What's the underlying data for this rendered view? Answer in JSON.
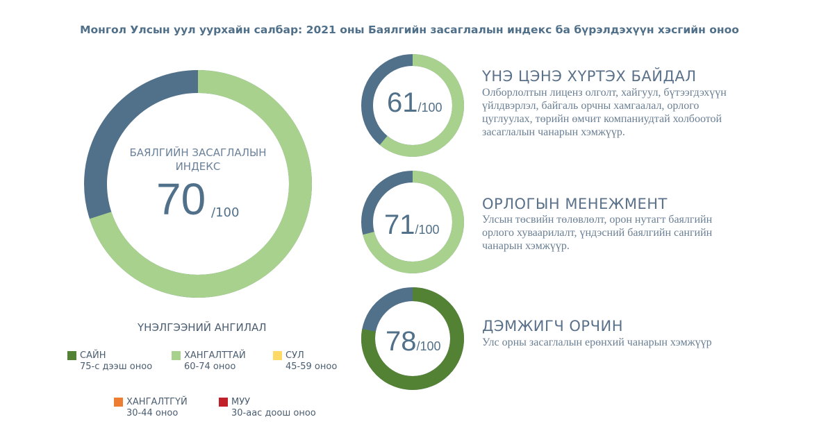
{
  "title": "Монгол Улсын уул уурхайн салбар: 2021 оны Баялгийн засаглалын индекс ба бүрэлдэхүүн хэсгийн оноо",
  "colors": {
    "remainder": "#51708a",
    "good": "#548235",
    "satisfactory": "#a9d18e",
    "weak": "#ffd966",
    "poor": "#ed7d31",
    "failing": "#c0202a"
  },
  "chart_data": {
    "type": "donut",
    "max": 100,
    "main": {
      "label": "БАЯЛГИЙН ЗАСАГЛАЛЫН ИНДЕКС",
      "value": 70,
      "denominator": "/100",
      "color": "#a9d18e"
    },
    "components": [
      {
        "label": "ҮНЭ ЦЭНЭ ХҮРТЭХ БАЙДАЛ",
        "value": 61,
        "denominator": "/100",
        "color": "#a9d18e",
        "description": "Олборлолтын лиценз олголт, хайгуул, бүтээгдэхүүн үйлдвэрлэл, байгаль орчны хамгаалал, орлого цуглуулах, төрийн өмчит компаниудтай холбоотой засаглалын чанарын хэмжүүр."
      },
      {
        "label": "ОРЛОГЫН МЕНЕЖМЕНТ",
        "value": 71,
        "denominator": "/100",
        "color": "#a9d18e",
        "description": "Улсын төсвийн төлөвлөлт, орон нутагт баялгийн орлого хуваарилалт, үндэсний баялгийн сангийн чанарын хэмжүүр."
      },
      {
        "label": "ДЭМЖИГЧ ОРЧИН",
        "value": 78,
        "denominator": "/100",
        "color": "#548235",
        "description": "Улс орны засаглалын ерөнхий чанарын хэмжүүр"
      }
    ],
    "legend": {
      "title": "ҮНЭЛГЭЭНИЙ АНГИЛАЛ",
      "items": [
        {
          "name": "САЙН",
          "range": "75-с дээш оноо",
          "color": "#548235"
        },
        {
          "name": "ХАНГАЛТТАЙ",
          "range": "60-74 оноо",
          "color": "#a9d18e"
        },
        {
          "name": "СУЛ",
          "range": "45-59 оноо",
          "color": "#ffd966"
        },
        {
          "name": "ХАНГАЛТГҮЙ",
          "range": "30-44 оноо",
          "color": "#ed7d31"
        },
        {
          "name": "МУУ",
          "range": "30-аас доош оноо",
          "color": "#c0202a"
        }
      ]
    }
  }
}
